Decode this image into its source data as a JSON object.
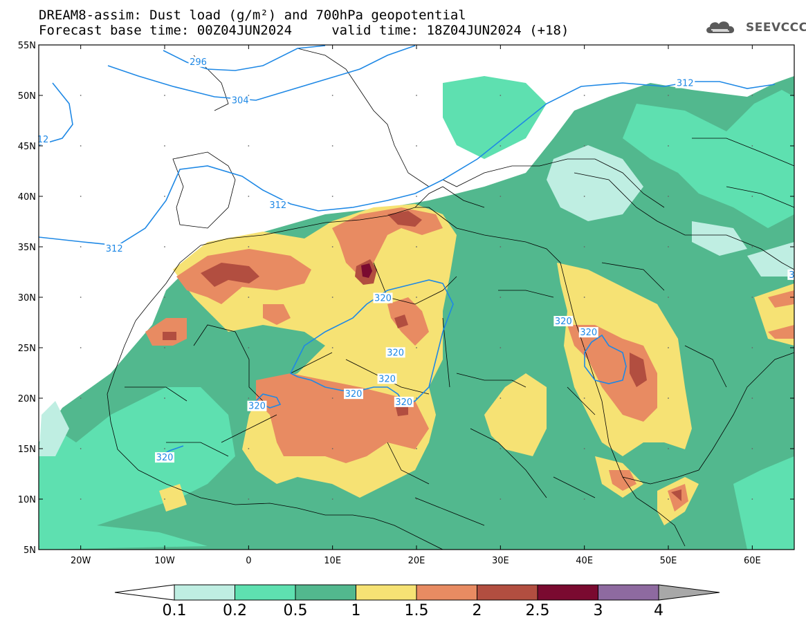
{
  "title": {
    "line1": "DREAM8-assim: Dust load (g/m²) and 700hPa geopotential",
    "line2": "Forecast base time: 00Z04JUN2024     valid time: 18Z04JUN2024 (+18)"
  },
  "logo": {
    "icon": "cloud-icon",
    "text": "SEEVCCC"
  },
  "map_extent": {
    "lon": [
      -25,
      65
    ],
    "lat": [
      5,
      55
    ]
  },
  "axes": {
    "lat_labels": [
      "55N",
      "50N",
      "45N",
      "40N",
      "35N",
      "30N",
      "25N",
      "20N",
      "15N",
      "10N",
      "5N"
    ],
    "lon_labels": [
      "20W",
      "10W",
      "0",
      "10E",
      "20E",
      "30E",
      "40E",
      "50E",
      "60E"
    ]
  },
  "contour_labels": [
    {
      "text": "296",
      "lon": -6,
      "lat": 53.3
    },
    {
      "text": "304",
      "lon": -1,
      "lat": 49.5
    },
    {
      "text": "12",
      "lon": -24.5,
      "lat": 45.6
    },
    {
      "text": "312",
      "lon": 3.5,
      "lat": 39.1
    },
    {
      "text": "312",
      "lon": -16,
      "lat": 34.8
    },
    {
      "text": "312",
      "lon": 52,
      "lat": 51.2
    },
    {
      "text": "320",
      "lon": 16,
      "lat": 29.9
    },
    {
      "text": "320",
      "lon": 17.5,
      "lat": 24.5
    },
    {
      "text": "320",
      "lon": 16.5,
      "lat": 21.9
    },
    {
      "text": "320",
      "lon": 12.5,
      "lat": 20.4
    },
    {
      "text": "320",
      "lon": 18.5,
      "lat": 19.6
    },
    {
      "text": "320",
      "lon": 1,
      "lat": 19.2
    },
    {
      "text": "320",
      "lon": -10,
      "lat": 14.1
    },
    {
      "text": "320",
      "lon": 37.5,
      "lat": 27.6
    },
    {
      "text": "320",
      "lon": 40.5,
      "lat": 26.5
    },
    {
      "text": "3",
      "lon": 64.7,
      "lat": 32.2
    }
  ],
  "colors": {
    "c01": "#bfeee2",
    "c02": "#5ee0b0",
    "c05": "#52b88e",
    "c1": "#f6e274",
    "c15": "#e88b62",
    "c2": "#b24e40",
    "c25": "#7a0a30",
    "c3": "#8e6aa0",
    "c4": "#a8a8a8",
    "contour": "#1e88e5"
  },
  "colorbar": {
    "labels": [
      "0.1",
      "0.2",
      "0.5",
      "1",
      "1.5",
      "2",
      "2.5",
      "3",
      "4"
    ]
  }
}
